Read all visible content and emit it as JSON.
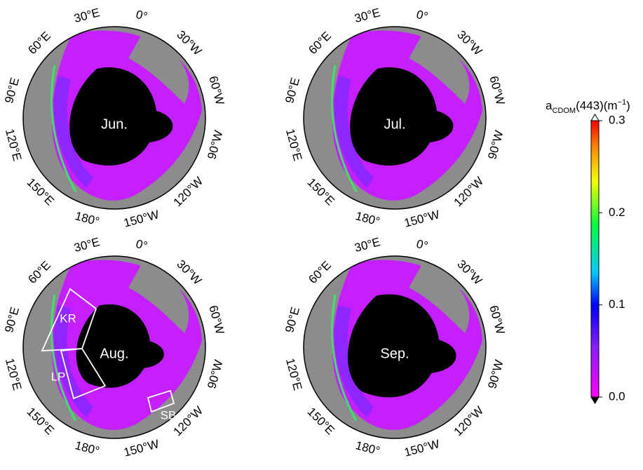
{
  "panels": [
    {
      "month": "Jun.",
      "lon_labels": [
        "0°",
        "30°W",
        "60°W",
        "90°W",
        "120°W",
        "150°W",
        "180°",
        "150°E",
        "120°E",
        "90°E",
        "60°E",
        "30°E"
      ]
    },
    {
      "month": "Jul.",
      "lon_labels": [
        "0°",
        "30°W",
        "60°W",
        "90°W",
        "120°W",
        "150°W",
        "180°",
        "150°E",
        "120°E",
        "90°E",
        "60°E",
        "30°E"
      ]
    },
    {
      "month": "Aug.",
      "lon_labels": [
        "0°",
        "30°W",
        "60°W",
        "90°W",
        "120°W",
        "150°W",
        "180°",
        "150°E",
        "120°E",
        "90°E",
        "60°E",
        "30°E"
      ],
      "regions": [
        "KR",
        "LP",
        "SB"
      ]
    },
    {
      "month": "Sep.",
      "lon_labels": [
        "0°",
        "30°W",
        "60°W",
        "90°W",
        "120°W",
        "150°W",
        "180°",
        "150°E",
        "120°E",
        "90°E",
        "60°E",
        "30°E"
      ]
    }
  ],
  "colorbar": {
    "label": {
      "base": "a",
      "sub": "CDOM",
      "main": "(443)(m",
      "sup": "−1",
      "end": ")"
    },
    "lim": [
      0,
      0.3
    ],
    "ticks": [
      {
        "value": 0,
        "label": "0.0"
      },
      {
        "value": 0.1,
        "label": "0.1"
      },
      {
        "value": 0.2,
        "label": "0.2"
      },
      {
        "value": 0.3,
        "label": "0.3"
      }
    ]
  }
}
